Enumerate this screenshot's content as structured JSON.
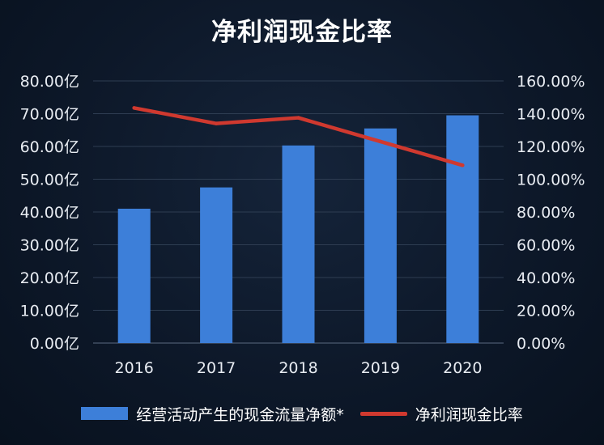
{
  "chart_data": {
    "type": "bar",
    "title": "净利润现金比率",
    "categories": [
      "2016",
      "2017",
      "2018",
      "2019",
      "2020"
    ],
    "series": [
      {
        "name": "经营活动产生的现金流量净额*",
        "type": "bar",
        "axis": "left",
        "color": "#3d7fd9",
        "values": [
          41.0,
          47.5,
          60.3,
          65.5,
          69.5
        ]
      },
      {
        "name": "净利润现金比率",
        "type": "line",
        "axis": "right",
        "color": "#d0392f",
        "values": [
          143.5,
          134.0,
          137.5,
          123.0,
          108.5
        ]
      }
    ],
    "y_left": {
      "ylim": [
        0,
        80
      ],
      "ticks": [
        "0.00亿",
        "10.00亿",
        "20.00亿",
        "30.00亿",
        "40.00亿",
        "50.00亿",
        "60.00亿",
        "70.00亿",
        "80.00亿"
      ]
    },
    "y_right": {
      "ylim": [
        0,
        160
      ],
      "ticks": [
        "0.00%",
        "20.00%",
        "40.00%",
        "60.00%",
        "80.00%",
        "100.00%",
        "120.00%",
        "140.00%",
        "160.00%"
      ]
    },
    "grid": true,
    "legend_position": "bottom"
  }
}
